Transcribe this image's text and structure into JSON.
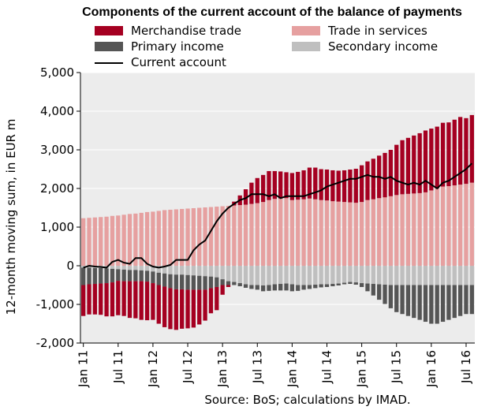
{
  "title": "Components of the current account of the balance of payments",
  "legend": {
    "merchandise": "Merchandise trade",
    "services": "Trade in services",
    "primary": "Primary income",
    "secondary": "Secondary income",
    "current": "Current account"
  },
  "source": "Source: BoS; calculations by IMAD.",
  "colors": {
    "merchandise": "#A50021",
    "services": "#E6A0A0",
    "primary": "#555555",
    "secondary": "#BFBFBF",
    "current": "#000000",
    "background": "#ECECEC"
  },
  "chart_data": {
    "type": "bar",
    "subtype": "stacked bar with line overlay",
    "ylabel": "12-month moving sum, in EUR m",
    "ylim": [
      -2000,
      5000
    ],
    "yticks": [
      "5,000",
      "4,000",
      "3,000",
      "2,000",
      "1,000",
      "0",
      "-1,000",
      "-2,000"
    ],
    "ytick_values": [
      5000,
      4000,
      3000,
      2000,
      1000,
      0,
      -1000,
      -2000
    ],
    "grid": true,
    "legend_position": "top",
    "xtick_labels": [
      "Jan 11",
      "Jul 11",
      "Jan 12",
      "Jul 12",
      "Jan 13",
      "Jul 13",
      "Jan 14",
      "Jul 14",
      "Jan 15",
      "Jul 15",
      "Jan 16",
      "Jul 16"
    ],
    "xtick_index": [
      0,
      6,
      12,
      18,
      24,
      30,
      36,
      42,
      48,
      54,
      60,
      66
    ],
    "categories": [
      "Jan 11",
      "Feb 11",
      "Mar 11",
      "Apr 11",
      "May 11",
      "Jun 11",
      "Jul 11",
      "Aug 11",
      "Sep 11",
      "Oct 11",
      "Nov 11",
      "Dec 11",
      "Jan 12",
      "Feb 12",
      "Mar 12",
      "Apr 12",
      "May 12",
      "Jun 12",
      "Jul 12",
      "Aug 12",
      "Sep 12",
      "Oct 12",
      "Nov 12",
      "Dec 12",
      "Jan 13",
      "Feb 13",
      "Mar 13",
      "Apr 13",
      "May 13",
      "Jun 13",
      "Jul 13",
      "Aug 13",
      "Sep 13",
      "Oct 13",
      "Nov 13",
      "Dec 13",
      "Jan 14",
      "Feb 14",
      "Mar 14",
      "Apr 14",
      "May 14",
      "Jun 14",
      "Jul 14",
      "Aug 14",
      "Sep 14",
      "Oct 14",
      "Nov 14",
      "Dec 14",
      "Jan 15",
      "Feb 15",
      "Mar 15",
      "Apr 15",
      "May 15",
      "Jun 15",
      "Jul 15",
      "Aug 15",
      "Sep 15",
      "Oct 15",
      "Nov 15",
      "Dec 15",
      "Jan 16",
      "Feb 16",
      "Mar 16",
      "Apr 16",
      "May 16",
      "Jun 16",
      "Jul 16",
      "Aug 16"
    ],
    "series": [
      {
        "name": "Merchandise trade",
        "key": "merchandise",
        "values": [
          -800,
          -780,
          -790,
          -810,
          -860,
          -880,
          -890,
          -900,
          -950,
          -960,
          -1000,
          -1000,
          -950,
          -1000,
          -1050,
          -1060,
          -1050,
          -1020,
          -1000,
          -980,
          -900,
          -800,
          -650,
          -600,
          -250,
          -50,
          100,
          250,
          400,
          550,
          650,
          700,
          750,
          720,
          700,
          670,
          700,
          720,
          750,
          800,
          820,
          800,
          800,
          800,
          800,
          820,
          850,
          880,
          950,
          1000,
          1050,
          1100,
          1150,
          1200,
          1300,
          1400,
          1450,
          1500,
          1550,
          1600,
          1600,
          1600,
          1650,
          1650,
          1700,
          1750,
          1700,
          1750
        ]
      },
      {
        "name": "Trade in services",
        "key": "services",
        "values": [
          1230,
          1240,
          1250,
          1260,
          1270,
          1290,
          1300,
          1320,
          1340,
          1350,
          1370,
          1390,
          1400,
          1420,
          1440,
          1450,
          1460,
          1470,
          1480,
          1490,
          1500,
          1510,
          1520,
          1530,
          1540,
          1550,
          1560,
          1570,
          1580,
          1600,
          1620,
          1650,
          1700,
          1730,
          1740,
          1750,
          1700,
          1710,
          1720,
          1740,
          1720,
          1700,
          1690,
          1670,
          1660,
          1650,
          1640,
          1630,
          1650,
          1700,
          1720,
          1750,
          1770,
          1800,
          1830,
          1850,
          1860,
          1870,
          1880,
          1900,
          1950,
          2000,
          2050,
          2060,
          2080,
          2100,
          2120,
          2150
        ]
      },
      {
        "name": "Primary income",
        "key": "primary",
        "values": [
          -450,
          -430,
          -410,
          -400,
          -380,
          -350,
          -300,
          -300,
          -290,
          -290,
          -280,
          -280,
          -300,
          -320,
          -340,
          -360,
          -380,
          -380,
          -380,
          -370,
          -360,
          -350,
          -300,
          -250,
          -150,
          -100,
          -80,
          -80,
          -90,
          -100,
          -120,
          -150,
          -150,
          -160,
          -170,
          -180,
          -180,
          -150,
          -120,
          -100,
          -90,
          -80,
          -70,
          -60,
          -50,
          -40,
          -50,
          -60,
          -100,
          -200,
          -300,
          -400,
          -500,
          -600,
          -700,
          -750,
          -800,
          -850,
          -900,
          -950,
          -1000,
          -1000,
          -950,
          -900,
          -850,
          -800,
          -750,
          -750
        ]
      },
      {
        "name": "Secondary income",
        "key": "secondary",
        "values": [
          -50,
          -50,
          -60,
          -60,
          -70,
          -80,
          -90,
          -100,
          -110,
          -110,
          -120,
          -130,
          -150,
          -180,
          -200,
          -220,
          -230,
          -230,
          -240,
          -250,
          -260,
          -270,
          -280,
          -300,
          -350,
          -400,
          -420,
          -450,
          -480,
          -500,
          -500,
          -510,
          -500,
          -480,
          -470,
          -460,
          -480,
          -500,
          -500,
          -500,
          -490,
          -480,
          -480,
          -470,
          -460,
          -440,
          -420,
          -430,
          -450,
          -460,
          -470,
          -480,
          -490,
          -500,
          -500,
          -500,
          -500,
          -500,
          -500,
          -500,
          -500,
          -500,
          -500,
          -500,
          -500,
          -500,
          -500,
          -500
        ]
      },
      {
        "name": "Current account",
        "key": "current",
        "type": "line",
        "values": [
          -50,
          0,
          -20,
          -30,
          -50,
          100,
          150,
          80,
          50,
          200,
          200,
          50,
          -20,
          -50,
          -20,
          20,
          150,
          150,
          150,
          400,
          550,
          650,
          900,
          1150,
          1350,
          1500,
          1600,
          1700,
          1750,
          1850,
          1850,
          1850,
          1800,
          1850,
          1750,
          1800,
          1800,
          1800,
          1800,
          1850,
          1900,
          1950,
          2050,
          2100,
          2150,
          2200,
          2250,
          2250,
          2300,
          2350,
          2300,
          2300,
          2250,
          2300,
          2200,
          2150,
          2100,
          2150,
          2100,
          2200,
          2100,
          2000,
          2150,
          2200,
          2300,
          2400,
          2500,
          2650
        ]
      }
    ]
  }
}
